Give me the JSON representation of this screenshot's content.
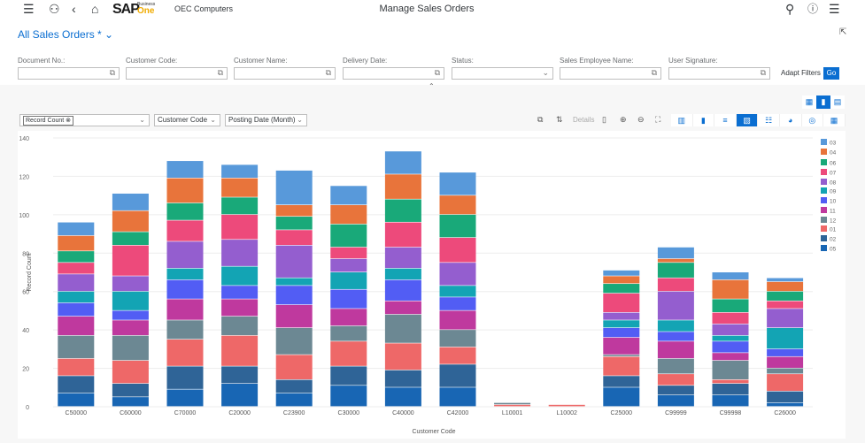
{
  "header": {
    "company": "OEC Computers",
    "title": "Manage Sales Orders",
    "logo_text": "SAP",
    "logo_sub": "Business",
    "logo_one": "One",
    "icons": [
      "menu-icon",
      "user-icon",
      "back-icon",
      "home-icon",
      "search-icon",
      "help-icon",
      "notifications-icon"
    ]
  },
  "variant": {
    "label": "All Sales Orders *"
  },
  "filters": [
    {
      "label": "Document No.:",
      "value": "",
      "type": "value-help"
    },
    {
      "label": "Customer Code:",
      "value": "",
      "type": "value-help"
    },
    {
      "label": "Customer Name:",
      "value": "",
      "type": "value-help"
    },
    {
      "label": "Delivery Date:",
      "value": "",
      "type": "value-help"
    },
    {
      "label": "Status:",
      "value": "",
      "type": "dropdown"
    },
    {
      "label": "Sales Employee Name:",
      "value": "",
      "type": "value-help"
    },
    {
      "label": "User Signature:",
      "value": "",
      "type": "value-help"
    }
  ],
  "filterbar": {
    "adapt": "Adapt Filters",
    "go": "Go"
  },
  "view_toggle": {
    "selected": "chart",
    "options": [
      "table",
      "chart",
      "chart-table"
    ]
  },
  "chart_toolbar": {
    "measure_token": "Record Count",
    "dimension1": "Customer Code",
    "dimension2": "Posting Date (Month)",
    "details": "Details",
    "selected_chart_type": "stacked-column",
    "accent": "#0a6ed1"
  },
  "chart_data": {
    "type": "bar",
    "stacked": true,
    "xlabel": "Customer Code",
    "ylabel": "Record Count",
    "ylim": [
      0,
      140
    ],
    "yticks": [
      0,
      20,
      40,
      60,
      80,
      100,
      120,
      140
    ],
    "grid": true,
    "legend": "right",
    "categories": [
      "C50000",
      "C60000",
      "C70000",
      "C20000",
      "C23900",
      "C30000",
      "C40000",
      "C42000",
      "L10001",
      "L10002",
      "C25000",
      "C99999",
      "C99998",
      "C26000"
    ],
    "series": [
      {
        "name": "05",
        "color": "#1866B4",
        "values": [
          7,
          5,
          9,
          12,
          7,
          11,
          10,
          10,
          0,
          0,
          10,
          6,
          6,
          2
        ]
      },
      {
        "name": "02",
        "color": "#2F6497",
        "values": [
          9,
          7,
          12,
          9,
          7,
          10,
          9,
          12,
          0,
          0,
          6,
          5,
          6,
          6
        ]
      },
      {
        "name": "01",
        "color": "#EE6868",
        "values": [
          9,
          12,
          14,
          16,
          13,
          13,
          14,
          9,
          1,
          1,
          10,
          6,
          2,
          9
        ]
      },
      {
        "name": "12",
        "color": "#6C8893",
        "values": [
          12,
          13,
          10,
          10,
          14,
          8,
          15,
          9,
          1,
          0,
          1,
          8,
          10,
          3
        ]
      },
      {
        "name": "11",
        "color": "#BF399E",
        "values": [
          10,
          8,
          11,
          9,
          12,
          9,
          7,
          10,
          0,
          0,
          9,
          9,
          4,
          6
        ]
      },
      {
        "name": "10",
        "color": "#525DF4",
        "values": [
          7,
          5,
          10,
          7,
          10,
          10,
          11,
          7,
          0,
          0,
          5,
          5,
          6,
          4
        ]
      },
      {
        "name": "09",
        "color": "#13A4B4",
        "values": [
          6,
          10,
          6,
          10,
          4,
          9,
          6,
          6,
          0,
          0,
          4,
          6,
          3,
          11
        ]
      },
      {
        "name": "08",
        "color": "#945ECF",
        "values": [
          9,
          8,
          14,
          14,
          17,
          7,
          11,
          12,
          0,
          0,
          4,
          15,
          6,
          10
        ]
      },
      {
        "name": "07",
        "color": "#ED4A7B",
        "values": [
          6,
          16,
          11,
          13,
          8,
          6,
          13,
          13,
          0,
          0,
          10,
          7,
          6,
          4
        ]
      },
      {
        "name": "06",
        "color": "#19A979",
        "values": [
          6,
          7,
          9,
          9,
          7,
          12,
          12,
          12,
          0,
          0,
          5,
          8,
          7,
          5
        ]
      },
      {
        "name": "04",
        "color": "#E8743B",
        "values": [
          8,
          11,
          13,
          10,
          6,
          10,
          13,
          10,
          0,
          0,
          4,
          2,
          10,
          5
        ]
      },
      {
        "name": "03",
        "color": "#5899DA",
        "values": [
          7,
          9,
          9,
          7,
          18,
          10,
          12,
          12,
          0,
          0,
          3,
          6,
          4,
          2
        ]
      }
    ]
  }
}
